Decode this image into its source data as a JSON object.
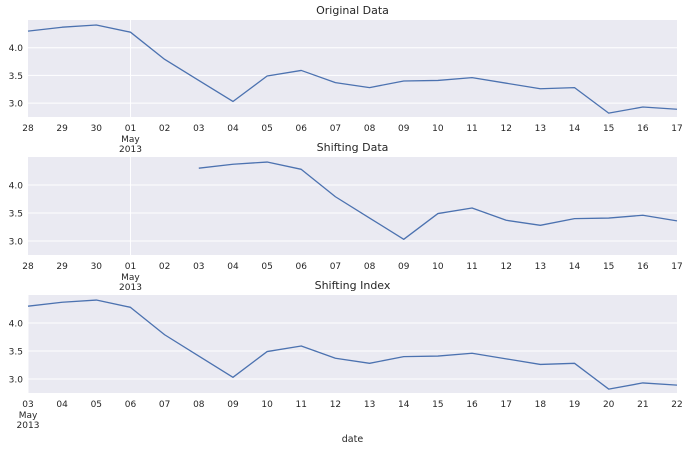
{
  "chart_data": [
    {
      "type": "line",
      "title": "Original Data",
      "xlabel": "",
      "color": "#4c72b0",
      "grid": true,
      "background": "#eaeaf2",
      "x": [
        "2013-04-28",
        "2013-04-29",
        "2013-04-30",
        "2013-05-01",
        "2013-05-02",
        "2013-05-03",
        "2013-05-04",
        "2013-05-05",
        "2013-05-06",
        "2013-05-07",
        "2013-05-08",
        "2013-05-09",
        "2013-05-10",
        "2013-05-11",
        "2013-05-12",
        "2013-05-13",
        "2013-05-14",
        "2013-05-15",
        "2013-05-16",
        "2013-05-17"
      ],
      "values": [
        4.3,
        4.37,
        4.41,
        4.28,
        3.79,
        3.41,
        3.03,
        3.49,
        3.59,
        3.37,
        3.28,
        3.4,
        3.41,
        3.46,
        3.36,
        3.26,
        3.28,
        2.82,
        2.93,
        2.89
      ],
      "x_ticks": [
        "28",
        "29",
        "30",
        "01",
        "02",
        "03",
        "04",
        "05",
        "06",
        "07",
        "08",
        "09",
        "10",
        "11",
        "12",
        "13",
        "14",
        "15",
        "16",
        "17"
      ],
      "x_major_label": {
        "tick": "01",
        "lines": [
          "May",
          "2013"
        ]
      },
      "y_ticks": [
        "3.0",
        "3.5",
        "4.0"
      ],
      "ylim": [
        2.75,
        4.5
      ]
    },
    {
      "type": "line",
      "title": "Shifting Data",
      "xlabel": "",
      "color": "#4c72b0",
      "grid": true,
      "background": "#eaeaf2",
      "x": [
        "2013-04-28",
        "2013-04-29",
        "2013-04-30",
        "2013-05-01",
        "2013-05-02",
        "2013-05-03",
        "2013-05-04",
        "2013-05-05",
        "2013-05-06",
        "2013-05-07",
        "2013-05-08",
        "2013-05-09",
        "2013-05-10",
        "2013-05-11",
        "2013-05-12",
        "2013-05-13",
        "2013-05-14",
        "2013-05-15",
        "2013-05-16",
        "2013-05-17"
      ],
      "values": [
        null,
        null,
        null,
        null,
        null,
        4.3,
        4.37,
        4.41,
        4.28,
        3.79,
        3.41,
        3.03,
        3.49,
        3.59,
        3.37,
        3.28,
        3.4,
        3.41,
        3.46,
        3.36
      ],
      "x_ticks": [
        "28",
        "29",
        "30",
        "01",
        "02",
        "03",
        "04",
        "05",
        "06",
        "07",
        "08",
        "09",
        "10",
        "11",
        "12",
        "13",
        "14",
        "15",
        "16",
        "17"
      ],
      "x_major_label": {
        "tick": "01",
        "lines": [
          "May",
          "2013"
        ]
      },
      "y_ticks": [
        "3.0",
        "3.5",
        "4.0"
      ],
      "ylim": [
        2.75,
        4.5
      ]
    },
    {
      "type": "line",
      "title": "Shifting Index",
      "xlabel": "date",
      "color": "#4c72b0",
      "grid": true,
      "background": "#eaeaf2",
      "x": [
        "2013-05-03",
        "2013-05-04",
        "2013-05-05",
        "2013-05-06",
        "2013-05-07",
        "2013-05-08",
        "2013-05-09",
        "2013-05-10",
        "2013-05-11",
        "2013-05-12",
        "2013-05-13",
        "2013-05-14",
        "2013-05-15",
        "2013-05-16",
        "2013-05-17",
        "2013-05-18",
        "2013-05-19",
        "2013-05-20",
        "2013-05-21",
        "2013-05-22"
      ],
      "values": [
        4.3,
        4.37,
        4.41,
        4.28,
        3.79,
        3.41,
        3.03,
        3.49,
        3.59,
        3.37,
        3.28,
        3.4,
        3.41,
        3.46,
        3.36,
        3.26,
        3.28,
        2.82,
        2.93,
        2.89
      ],
      "x_ticks": [
        "03",
        "04",
        "05",
        "06",
        "07",
        "08",
        "09",
        "10",
        "11",
        "12",
        "13",
        "14",
        "15",
        "16",
        "17",
        "18",
        "19",
        "20",
        "21",
        "22"
      ],
      "x_major_label": {
        "tick": "03",
        "lines": [
          "May",
          "2013"
        ]
      },
      "y_ticks": [
        "3.0",
        "3.5",
        "4.0"
      ],
      "ylim": [
        2.75,
        4.5
      ]
    }
  ]
}
